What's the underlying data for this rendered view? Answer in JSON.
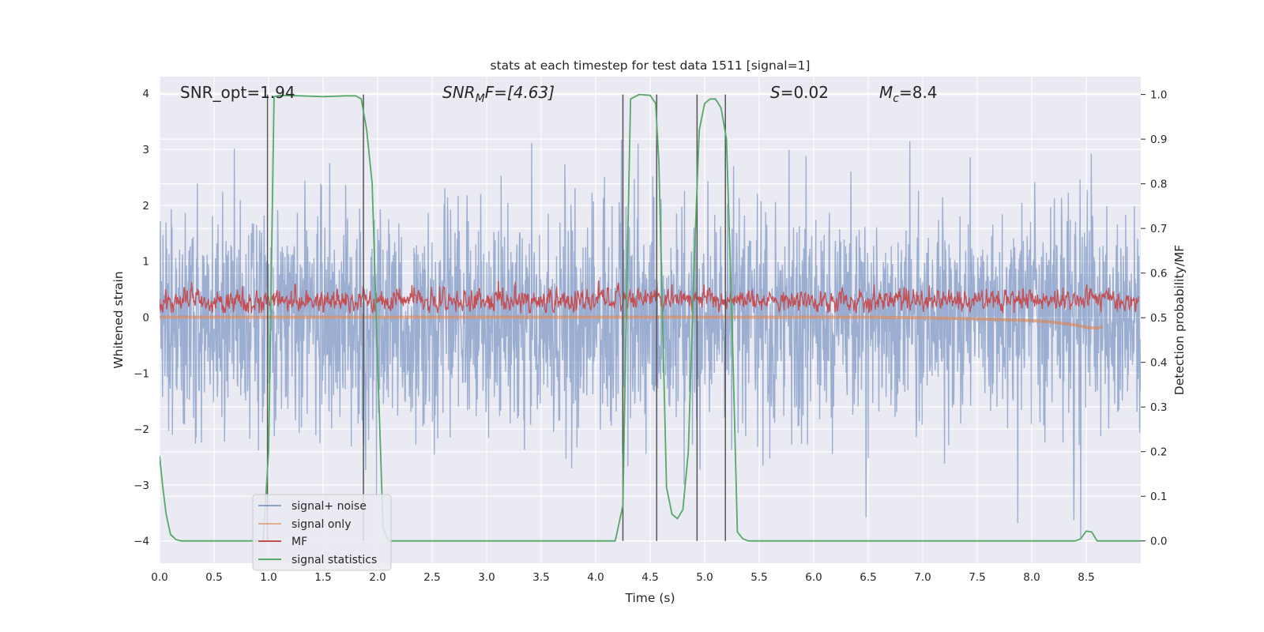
{
  "chart_data": {
    "type": "line",
    "title": "stats at each timestep for test data 1511 [signal=1]",
    "xlabel": "Time (s)",
    "ylabel": "Whitened strain",
    "y2label": "Detection probability/MF",
    "xlim": [
      0.0,
      9.0
    ],
    "ylim": [
      -4.4,
      4.3
    ],
    "y2lim": [
      -0.05,
      1.04
    ],
    "xticks": [
      0.0,
      0.5,
      1.0,
      1.5,
      2.0,
      2.5,
      3.0,
      3.5,
      4.0,
      4.5,
      5.0,
      5.5,
      6.0,
      6.5,
      7.0,
      7.5,
      8.0,
      8.5
    ],
    "xtick_labels": [
      "0.0",
      "0.5",
      "1.0",
      "1.5",
      "2.0",
      "2.5",
      "3.0",
      "3.5",
      "4.0",
      "4.5",
      "5.0",
      "5.5",
      "6.0",
      "6.5",
      "7.0",
      "7.5",
      "8.0",
      "8.5"
    ],
    "yticks": [
      -4,
      -3,
      -2,
      -1,
      0,
      1,
      2,
      3,
      4
    ],
    "ytick_labels": [
      "−4",
      "−3",
      "−2",
      "−1",
      "0",
      "1",
      "2",
      "3",
      "4"
    ],
    "y2ticks": [
      0.0,
      0.1,
      0.2,
      0.3,
      0.4,
      0.5,
      0.6,
      0.7,
      0.8,
      0.9,
      1.0
    ],
    "y2tick_labels": [
      "0.0",
      "0.1",
      "0.2",
      "0.3",
      "0.4",
      "0.5",
      "0.6",
      "0.7",
      "0.8",
      "0.9",
      "1.0"
    ],
    "annotations": [
      {
        "id": "snr-opt",
        "text": "SNR_opt=1.94"
      },
      {
        "id": "snr-mf",
        "text": "SNRMF=[4.63]",
        "math_base": "SNR",
        "math_sub": "M",
        "math_rest": "F=[4.63]"
      },
      {
        "id": "s-value",
        "text": "S=0.02",
        "math_base": "S",
        "math_rest": "=0.02"
      },
      {
        "id": "mc-value",
        "text": "Mc=8.4",
        "math_base": "M",
        "math_sub": "c",
        "math_rest": "=8.4"
      }
    ],
    "detection_lines_x": [
      0.99,
      1.87,
      4.25,
      4.56,
      4.93,
      5.19
    ],
    "series": [
      {
        "name": "signal+ noise",
        "color": "#4c72b0",
        "opacity": 0.5,
        "axis": "left",
        "description": "dense whitened strain noise spanning roughly -2.5 to 2.5 with spikes to about +/-3.5",
        "amplitude_sigma": 1.0,
        "range": [
          -4.0,
          3.4
        ]
      },
      {
        "name": "signal only",
        "color": "#dd8452",
        "opacity": 0.6,
        "axis": "left",
        "x": [
          0.0,
          6.5,
          7.0,
          7.5,
          8.0,
          8.2,
          8.4,
          8.5,
          8.6,
          8.65
        ],
        "y": [
          0.0,
          0.0,
          -0.01,
          -0.03,
          -0.06,
          -0.09,
          -0.14,
          -0.18,
          -0.2,
          -0.17
        ]
      },
      {
        "name": "MF",
        "color": "#c44e52",
        "opacity": 1.0,
        "axis": "right",
        "description": "matched filter output fluctuating around 0.54 on the right axis, range about 0.51 to 0.62",
        "mean": 0.54,
        "range": [
          0.51,
          0.63
        ]
      },
      {
        "name": "signal statistics",
        "color": "#55a868",
        "opacity": 1.0,
        "axis": "right",
        "x": [
          0.0,
          0.03,
          0.06,
          0.1,
          0.15,
          0.2,
          0.3,
          0.5,
          0.8,
          0.95,
          1.0,
          1.05,
          1.1,
          1.3,
          1.5,
          1.7,
          1.8,
          1.85,
          1.9,
          1.95,
          2.0,
          2.05,
          2.1,
          2.2,
          2.5,
          3.0,
          3.5,
          4.0,
          4.18,
          4.25,
          4.28,
          4.32,
          4.4,
          4.5,
          4.55,
          4.58,
          4.65,
          4.7,
          4.75,
          4.8,
          4.85,
          4.9,
          4.95,
          5.0,
          5.05,
          5.1,
          5.15,
          5.2,
          5.25,
          5.3,
          5.35,
          5.4,
          5.5,
          6.0,
          7.0,
          8.0,
          8.4,
          8.45,
          8.5,
          8.55,
          8.6,
          9.0
        ],
        "y": [
          0.19,
          0.12,
          0.06,
          0.015,
          0.003,
          0.0,
          0.0,
          0.0,
          0.0,
          0.0,
          0.2,
          0.995,
          0.998,
          0.997,
          0.995,
          0.997,
          0.997,
          0.99,
          0.92,
          0.8,
          0.4,
          0.03,
          0.0,
          0.0,
          0.0,
          0.0,
          0.0,
          0.0,
          0.0,
          0.08,
          0.5,
          0.99,
          1.0,
          0.998,
          0.98,
          0.85,
          0.12,
          0.06,
          0.05,
          0.07,
          0.2,
          0.6,
          0.92,
          0.98,
          0.99,
          0.99,
          0.97,
          0.9,
          0.5,
          0.02,
          0.005,
          0.0,
          0.0,
          0.0,
          0.0,
          0.0,
          0.0,
          0.005,
          0.022,
          0.02,
          0.0,
          0.0
        ]
      }
    ],
    "legend": {
      "placement": "lower-left",
      "entries": [
        "signal+ noise",
        "signal only",
        "MF",
        "signal statistics"
      ]
    },
    "grid": true,
    "style": "seaborn-darkgrid"
  }
}
